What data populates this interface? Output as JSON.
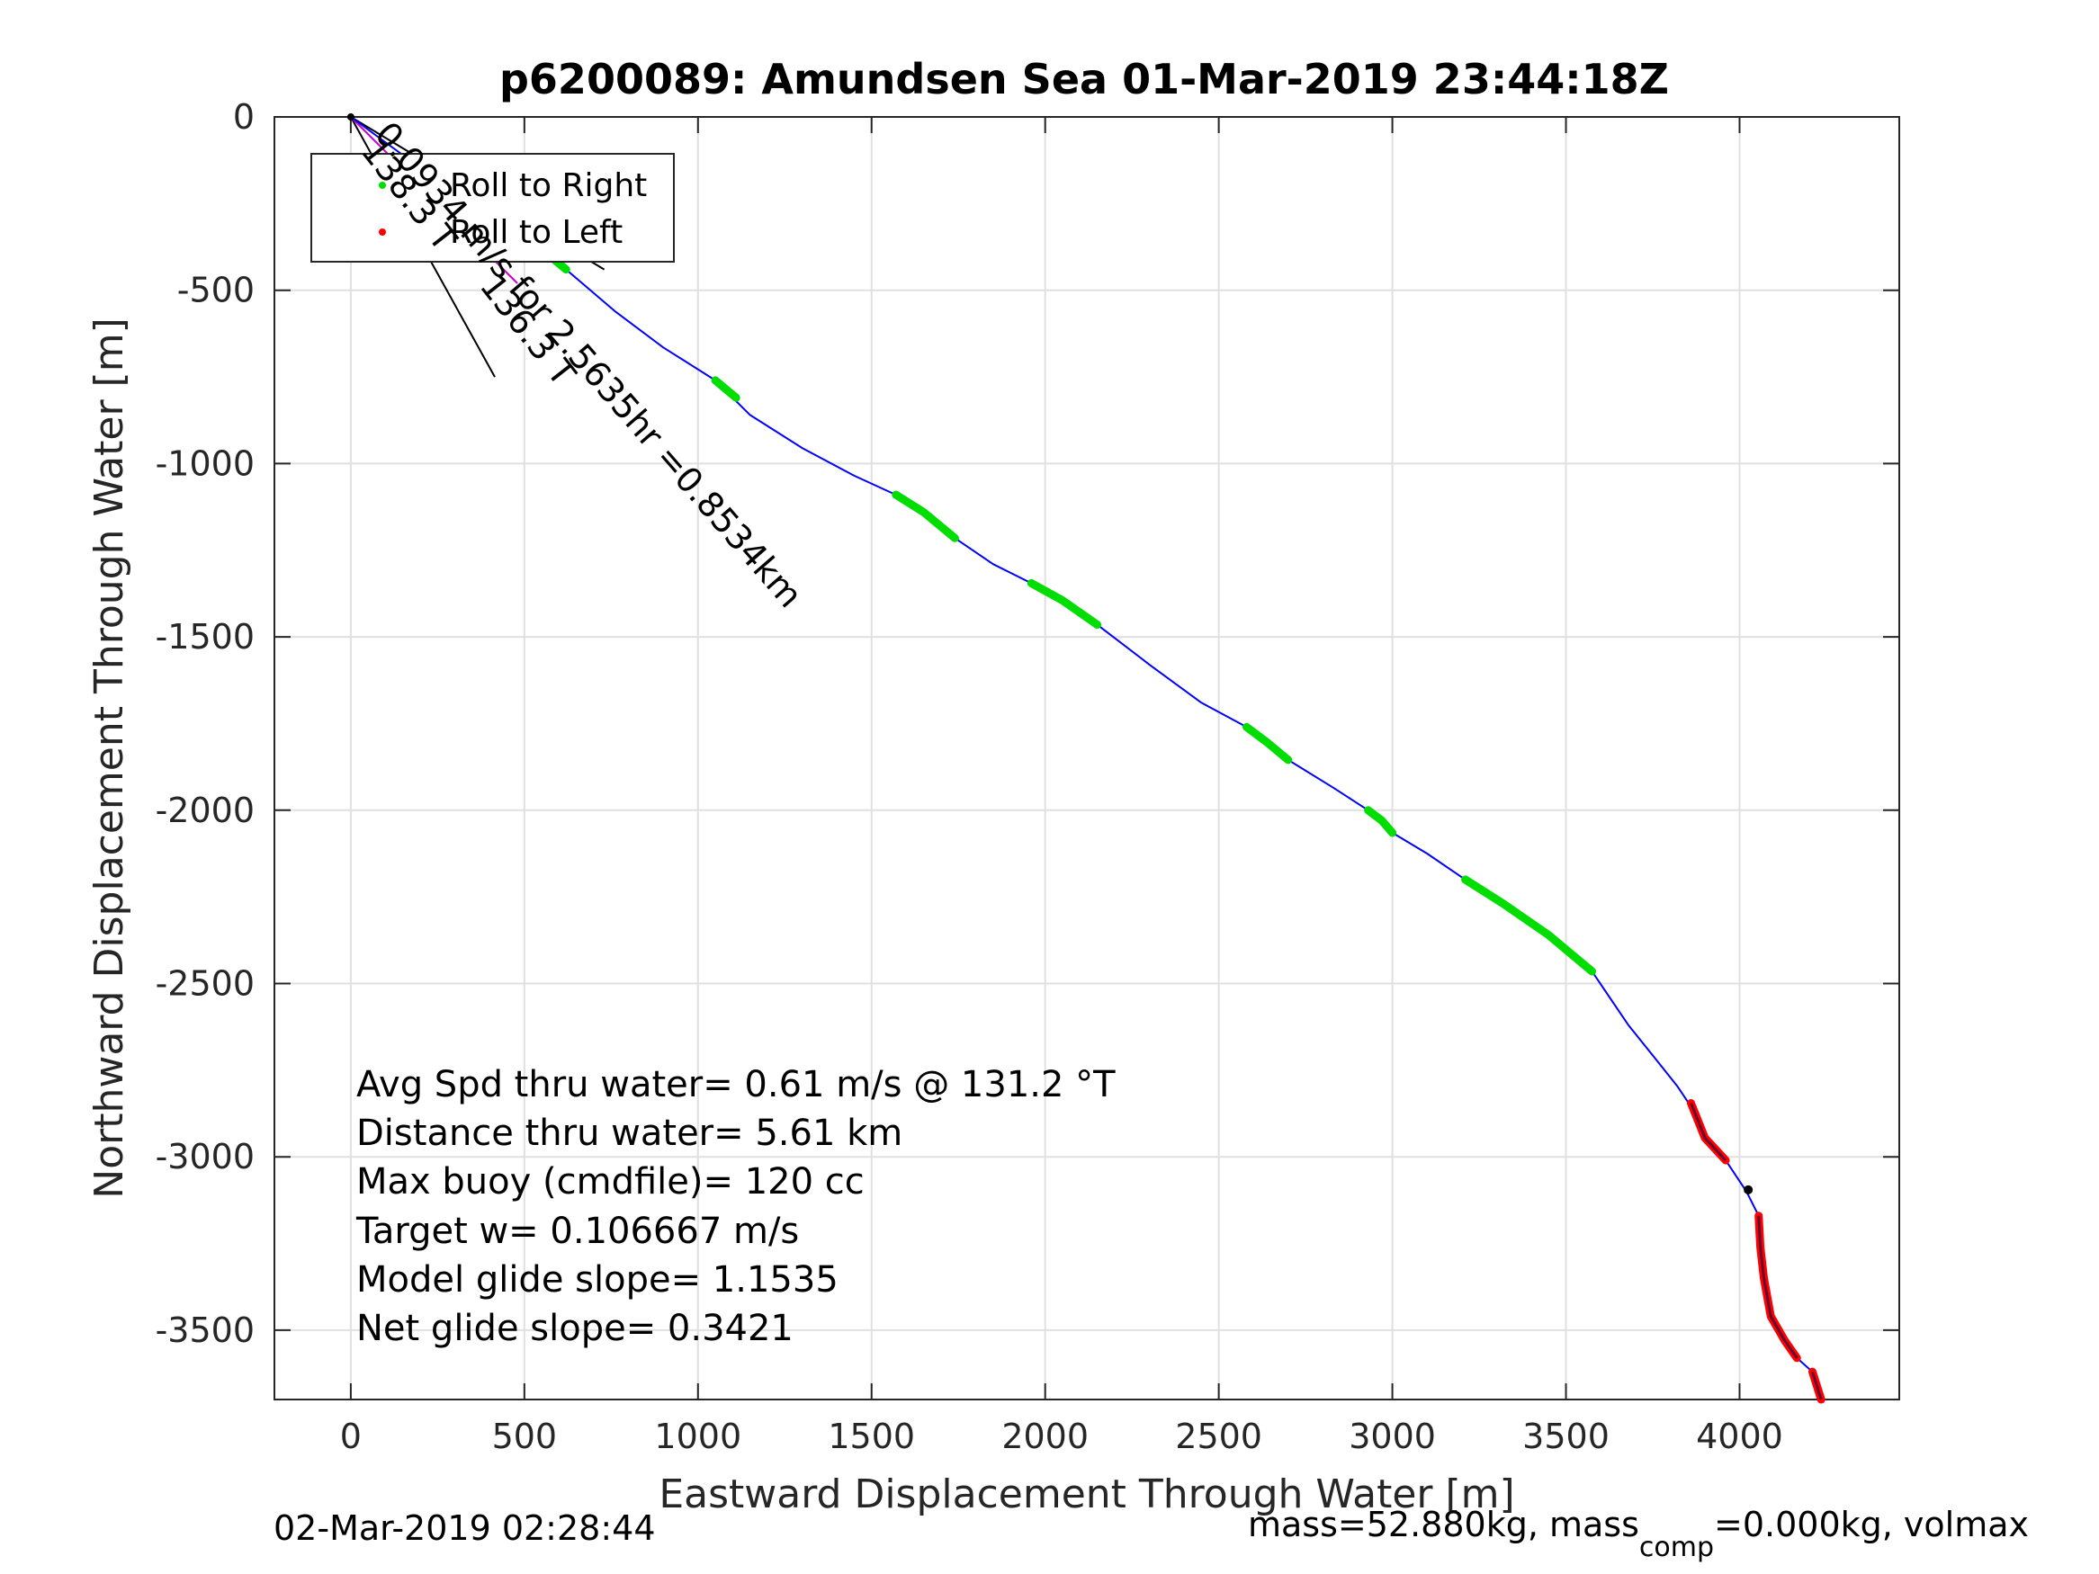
{
  "chart_data": {
    "type": "line",
    "title": "p6200089: Amundsen Sea 01-Mar-2019 23:44:18Z",
    "xlabel": "Eastward Displacement Through Water [m]",
    "ylabel": "Northward Displacement Through Water [m]",
    "xlim": [
      -220,
      4460
    ],
    "ylim": [
      -3700,
      0
    ],
    "xticks": [
      0,
      500,
      1000,
      1500,
      2000,
      2500,
      3000,
      3500,
      4000
    ],
    "yticks": [
      0,
      -500,
      -1000,
      -1500,
      -2000,
      -2500,
      -3000,
      -3500
    ],
    "grid": true,
    "legend": {
      "placement": "top-left",
      "items": [
        {
          "label": "Roll to Right",
          "color": "#00dd00"
        },
        {
          "label": "Roll to Left",
          "color": "#ff0000"
        }
      ]
    },
    "track": {
      "color": "#0000ff",
      "x": [
        0,
        150,
        300,
        450,
        560,
        620,
        760,
        900,
        1050,
        1150,
        1300,
        1450,
        1570,
        1650,
        1740,
        1850,
        1960,
        2050,
        2150,
        2300,
        2450,
        2580,
        2700,
        2830,
        2930,
        3000,
        3100,
        3210,
        3320,
        3450,
        3575,
        3680,
        3760,
        3820,
        3860,
        3900,
        3960,
        4020,
        4055,
        4060,
        4070,
        4090,
        4130,
        4165,
        4210,
        4235
      ],
      "y": [
        0,
        -110,
        -220,
        -320,
        -395,
        -440,
        -560,
        -665,
        -760,
        -860,
        -955,
        -1035,
        -1090,
        -1140,
        -1215,
        -1290,
        -1345,
        -1395,
        -1465,
        -1580,
        -1690,
        -1760,
        -1855,
        -1935,
        -2000,
        -2065,
        -2125,
        -2200,
        -2270,
        -2360,
        -2465,
        -2620,
        -2720,
        -2795,
        -2855,
        -2945,
        -3010,
        -3100,
        -3170,
        -3260,
        -3350,
        -3460,
        -3530,
        -3580,
        -3620,
        -3700
      ]
    },
    "roll_right_segments": [
      {
        "x": [
          560,
          620
        ],
        "y": [
          -390,
          -440
        ]
      },
      {
        "x": [
          1050,
          1110
        ],
        "y": [
          -760,
          -810
        ]
      },
      {
        "x": [
          1570,
          1650,
          1740
        ],
        "y": [
          -1090,
          -1140,
          -1215
        ]
      },
      {
        "x": [
          1960,
          2050,
          2150
        ],
        "y": [
          -1345,
          -1395,
          -1465
        ]
      },
      {
        "x": [
          2580,
          2640,
          2700
        ],
        "y": [
          -1760,
          -1805,
          -1855
        ]
      },
      {
        "x": [
          2930,
          2970,
          3000
        ],
        "y": [
          -2000,
          -2030,
          -2065
        ]
      },
      {
        "x": [
          3210,
          3320,
          3450,
          3575
        ],
        "y": [
          -2200,
          -2270,
          -2360,
          -2465
        ]
      }
    ],
    "roll_left_segments": [
      {
        "x": [
          3860,
          3900,
          3960
        ],
        "y": [
          -2845,
          -2945,
          -3010
        ]
      },
      {
        "x": [
          4055,
          4060,
          4070,
          4090,
          4130,
          4165
        ],
        "y": [
          -3170,
          -3260,
          -3350,
          -3460,
          -3530,
          -3580
        ]
      },
      {
        "x": [
          4210,
          4235
        ],
        "y": [
          -3620,
          -3700
        ]
      }
    ],
    "marker_point": {
      "x": 4025,
      "y": -3095
    },
    "annotations": {
      "diagonal_label": "0.0934 m/s for 2.5635hr =0.8534km",
      "angle_label_1": "138.3 T",
      "angle_label_2": "136.3 T"
    },
    "reference_lines": [
      {
        "x": [
          0,
          730
        ],
        "y": [
          0,
          -440
        ]
      },
      {
        "x": [
          0,
          415
        ],
        "y": [
          0,
          -750
        ]
      },
      {
        "x": [
          0,
          480
        ],
        "y": [
          0,
          -480
        ]
      }
    ],
    "stats": [
      "Avg Spd thru water=  0.61 m/s @ 131.2 °T",
      "Distance thru water=  5.61 km",
      "Max buoy (cmdfile)= 120 cc",
      "Target w= 0.106667 m/s",
      "Model glide slope= 1.1535",
      "Net glide slope= 0.3421"
    ]
  },
  "footer": {
    "timestamp": "02-Mar-2019 02:28:44",
    "mass_prefix": "mass=52.880kg, mass",
    "mass_sub": "comp",
    "mass_suffix": "=0.000kg, volmax"
  },
  "colors": {
    "track": "#0000ff",
    "roll_right": "#00dd00",
    "roll_left": "#ff0000",
    "reference": "#000000",
    "heading_line": "#cc00cc",
    "grid": "#e0e0e0"
  }
}
